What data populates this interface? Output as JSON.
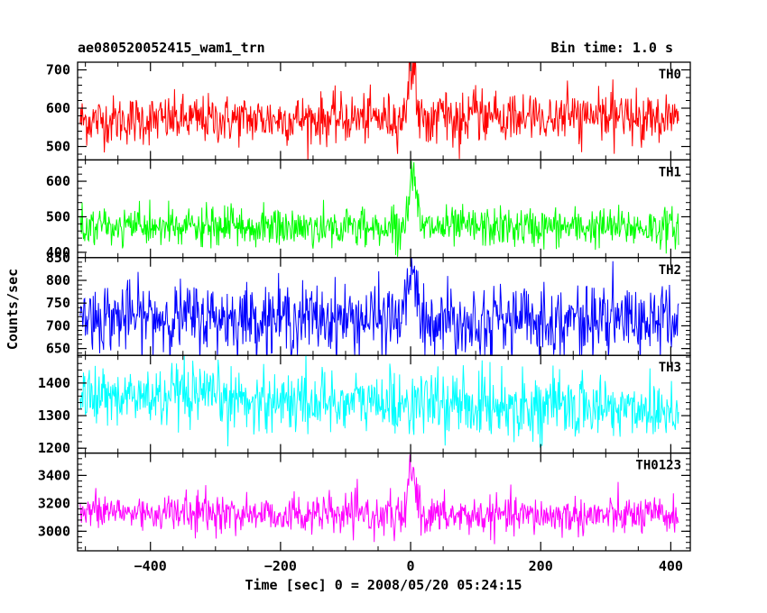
{
  "header": {
    "left_title": "ae080520052415_wam1_trn",
    "right_title": "Bin time: 1.0 s"
  },
  "chart_data": {
    "type": "line",
    "title": "ae080520052415_wam1_trn",
    "subtitle": "Bin time: 1.0 s",
    "xlabel": "Time [sec] 0 = 2008/05/20 05:24:15",
    "ylabel": "Counts/sec",
    "xlim": [
      -512,
      430
    ],
    "xticks": [
      -400,
      -200,
      0,
      200,
      400
    ],
    "xtick_labels": [
      "−400",
      "−200",
      "0",
      "200",
      "400"
    ],
    "x_range": [
      -508,
      412
    ],
    "grid": false,
    "panels": [
      {
        "label": "TH0",
        "color": "#ff0000",
        "ylim": [
          465,
          720
        ],
        "yticks": [
          500,
          600,
          700
        ],
        "ytick_labels": [
          "500",
          "600",
          "700"
        ],
        "baseline": 568,
        "noise_sd": 32,
        "peak": {
          "x": 3,
          "value": 720,
          "width": 6
        },
        "trend": [
          [
            -510,
            0
          ],
          [
            412,
            10
          ]
        ]
      },
      {
        "label": "TH1",
        "color": "#00ff00",
        "ylim": [
          385,
          660
        ],
        "yticks": [
          400,
          500,
          600
        ],
        "ytick_labels": [
          "400",
          "500",
          "600"
        ],
        "baseline": 470,
        "noise_sd": 28,
        "peak": {
          "x": 3,
          "value": 650,
          "width": 6
        },
        "trend": [
          [
            -510,
            0
          ],
          [
            412,
            0
          ]
        ]
      },
      {
        "label": "TH2",
        "color": "#0000ff",
        "ylim": [
          635,
          850
        ],
        "yticks": [
          650,
          700,
          750,
          800,
          850
        ],
        "ytick_labels": [
          "650",
          "700",
          "750",
          "800",
          "850"
        ],
        "baseline": 715,
        "noise_sd": 38,
        "peak": {
          "x": 3,
          "value": 850,
          "width": 6
        },
        "trend": [
          [
            -510,
            5
          ],
          [
            0,
            0
          ],
          [
            412,
            -3
          ]
        ]
      },
      {
        "label": "TH3",
        "color": "#00ffff",
        "ylim": [
          1185,
          1485
        ],
        "yticks": [
          1200,
          1300,
          1400
        ],
        "ytick_labels": [
          "1200",
          "1300",
          "1400"
        ],
        "baseline": 1360,
        "noise_sd": 48,
        "peak": null,
        "trend": [
          [
            -510,
            0
          ],
          [
            412,
            -40
          ]
        ]
      },
      {
        "label": "TH0123",
        "color": "#ff00ff",
        "ylim": [
          2860,
          3560
        ],
        "yticks": [
          3000,
          3200,
          3400
        ],
        "ytick_labels": [
          "3000",
          "3200",
          "3400"
        ],
        "baseline": 3110,
        "noise_sd": 68,
        "peak": {
          "x": 3,
          "value": 3560,
          "width": 6
        },
        "trend": [
          [
            -510,
            30
          ],
          [
            0,
            0
          ],
          [
            412,
            0
          ]
        ]
      }
    ]
  }
}
